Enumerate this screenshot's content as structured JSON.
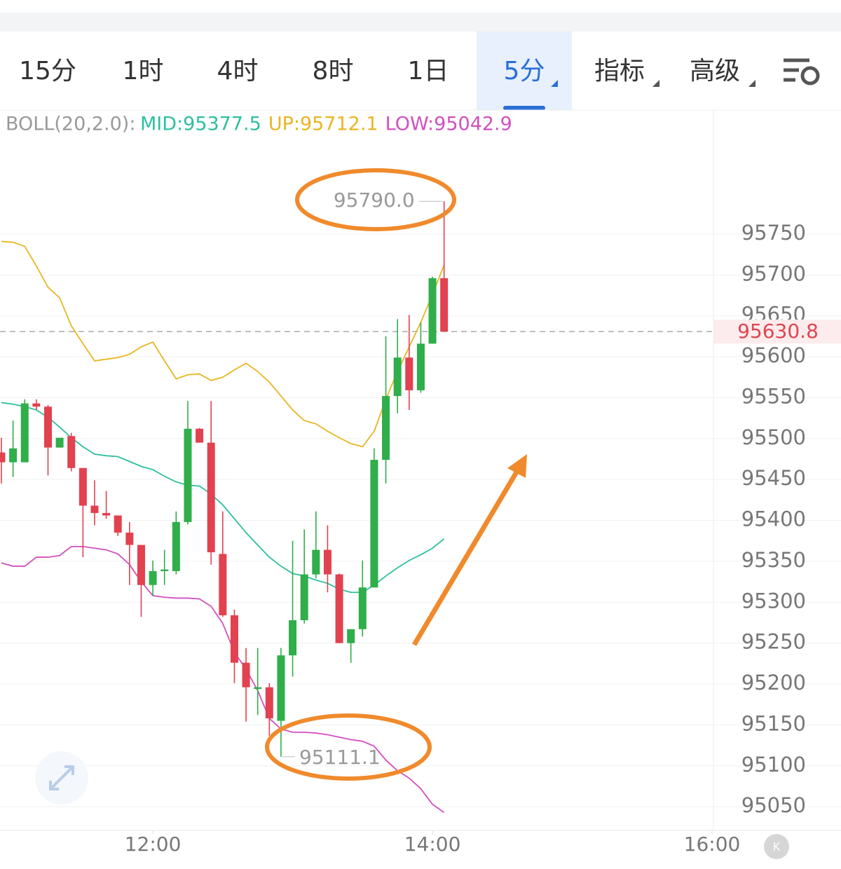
{
  "tabs": [
    "15分",
    "1时",
    "4时",
    "8时",
    "1日",
    "5分",
    "指标",
    "高级"
  ],
  "selected_tab": 5,
  "chart_data": {
    "type": "candlestick",
    "indicator_label": "BOLL(20,2.0):",
    "x": [
      655,
      660,
      665,
      670,
      675,
      680,
      685,
      690,
      695,
      700,
      705,
      710,
      715,
      720,
      725,
      730,
      735,
      740,
      745,
      750,
      755,
      760,
      765,
      770,
      775,
      780,
      785,
      790,
      795,
      800,
      805,
      810,
      815,
      820,
      825,
      830,
      835,
      840,
      845
    ],
    "open": [
      95483,
      95471,
      95471,
      95543,
      95539,
      95489,
      95503,
      95464,
      95418,
      95409,
      95406,
      95385,
      95370,
      95321,
      95338,
      95338,
      95398,
      95512,
      95495,
      95359,
      95284,
      95226,
      95194,
      95196,
      95155,
      95235,
      95278,
      95334,
      95364,
      95334,
      95250,
      95267,
      95318,
      95474,
      95552,
      95599,
      95559,
      95616,
      95696
    ],
    "high": [
      95501,
      95522,
      95548,
      95548,
      95541,
      95501,
      95507,
      95464,
      95449,
      95436,
      95406,
      95398,
      95370,
      95351,
      95364,
      95411,
      95546,
      95513,
      95546,
      95411,
      95291,
      95244,
      95244,
      95201,
      95244,
      95375,
      95389,
      95411,
      95394,
      95335,
      95267,
      95351,
      95488,
      95625,
      95646,
      95651,
      95642,
      95698,
      95790.0
    ],
    "low": [
      95445,
      95453,
      95471,
      95535,
      95455,
      95489,
      95460,
      95355,
      95394,
      95402,
      95381,
      95321,
      95282,
      95308,
      95321,
      95334,
      95395,
      95495,
      95346,
      95282,
      95201,
      95154,
      95162,
      95137,
      95111.1,
      95209,
      95274,
      95329,
      95312,
      95250,
      95226,
      95258,
      95318,
      95445,
      95531,
      95535,
      95556,
      95616,
      95630.8
    ],
    "close": [
      95471,
      95488,
      95543,
      95539,
      95489,
      95501,
      95464,
      95418,
      95409,
      95406,
      95385,
      95370,
      95321,
      95338,
      95340,
      95398,
      95512,
      95495,
      95361,
      95284,
      95226,
      95196,
      95196,
      95158,
      95235,
      95278,
      95334,
      95364,
      95334,
      95250,
      95267,
      95318,
      95474,
      95552,
      95599,
      95559,
      95616,
      95696,
      95630.8
    ],
    "up_color": "#2fae4a",
    "down_color": "#e2414f",
    "lines": [
      {
        "label": "MID:95377.5",
        "color": "#2dbf9f",
        "values": [
          95544,
          95542,
          95539,
          95535,
          95526,
          95514,
          95501,
          95490,
          95481,
          95479,
          95478,
          95472,
          95466,
          95462,
          95454,
          95447,
          95443,
          95442,
          95432,
          95419,
          95402,
          95385,
          95370,
          95355,
          95344,
          95335,
          95332,
          95327,
          95323,
          95316,
          95312,
          95312,
          95321,
          95332,
          95342,
          95351,
          95358,
          95366,
          95377.5
        ]
      },
      {
        "label": "UP:95712.1",
        "color": "#e9b521",
        "values": [
          95741,
          95740,
          95735,
          95711,
          95685,
          95672,
          95638,
          95616,
          95595,
          95597,
          95599,
          95603,
          95612,
          95618,
          95595,
          95573,
          95578,
          95579,
          95571,
          95575,
          95584,
          95592,
          95582,
          95569,
          95552,
          95535,
          95522,
          95518,
          95509,
          95501,
          95494,
          95490,
          95509,
          95548,
          95582,
          95612,
          95642,
          95676,
          95712.1
        ]
      },
      {
        "label": "LOW:95042.9",
        "color": "#d24fbf",
        "values": [
          95348,
          95344,
          95344,
          95355,
          95355,
          95357,
          95368,
          95368,
          95366,
          95364,
          95359,
          95346,
          95325,
          95308,
          95306,
          95305,
          95305,
          95304,
          95295,
          95274,
          95239,
          95218,
          95192,
          95158,
          95145,
          95141,
          95141,
          95140,
          95138,
          95135,
          95132,
          95130,
          95124,
          95107,
          95094,
          95085,
          95072,
          95053,
          95042.9
        ]
      }
    ],
    "ylim": [
      95021,
      95899
    ],
    "yticks": [
      95050,
      95100,
      95150,
      95200,
      95250,
      95300,
      95350,
      95400,
      95450,
      95500,
      95550,
      95600,
      95650,
      95700,
      95750
    ],
    "xlim": [
      654.4,
      960
    ],
    "xticks": [
      {
        "value": 720,
        "label": "12:00"
      },
      {
        "value": 840,
        "label": "14:00"
      },
      {
        "value": 960,
        "label": "16:00"
      }
    ],
    "last_price": 95630.8,
    "annotations": [
      {
        "value": 95790.0,
        "label": "95790.0"
      },
      {
        "value": 95111.1,
        "label": "95111.1"
      }
    ],
    "grid": true
  }
}
